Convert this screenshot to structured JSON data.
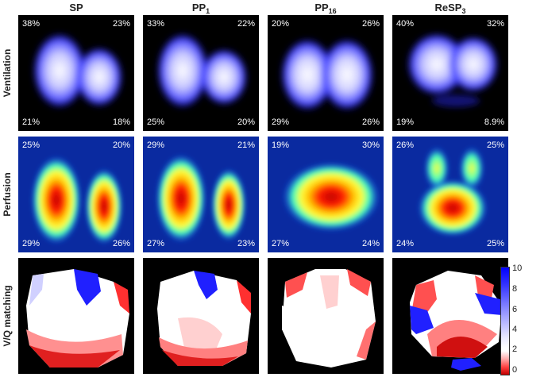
{
  "columns": [
    {
      "label": "SP",
      "sub": ""
    },
    {
      "label": "PP",
      "sub": "1"
    },
    {
      "label": "PP",
      "sub": "16"
    },
    {
      "label": "ReSP",
      "sub": "3"
    }
  ],
  "rows": [
    "Ventilation",
    "Perfusion",
    "V/Q matching"
  ],
  "ventilation_pcts": [
    {
      "tl": "38%",
      "tr": "23%",
      "bl": "21%",
      "br": "18%"
    },
    {
      "tl": "33%",
      "tr": "22%",
      "bl": "25%",
      "br": "20%"
    },
    {
      "tl": "20%",
      "tr": "26%",
      "bl": "29%",
      "br": "26%"
    },
    {
      "tl": "40%",
      "tr": "32%",
      "bl": "19%",
      "br": "8.9%"
    }
  ],
  "perfusion_pcts": [
    {
      "tl": "25%",
      "tr": "20%",
      "bl": "29%",
      "br": "26%"
    },
    {
      "tl": "29%",
      "tr": "21%",
      "bl": "27%",
      "br": "23%"
    },
    {
      "tl": "19%",
      "tr": "30%",
      "bl": "27%",
      "br": "24%"
    },
    {
      "tl": "26%",
      "tr": "25%",
      "bl": "24%",
      "br": "25%"
    }
  ],
  "colorbar_ticks": [
    "10",
    "8",
    "6",
    "4",
    "2",
    "0"
  ],
  "colors": {
    "ventilation_bg": "#000000",
    "ventilation_core": "#ffffff",
    "ventilation_edge": "#0000ff",
    "perfusion_bg": "#0a2aa0",
    "perfusion_hot": "#c00000",
    "vq_high": "#0000ff",
    "vq_low": "#c00000"
  }
}
